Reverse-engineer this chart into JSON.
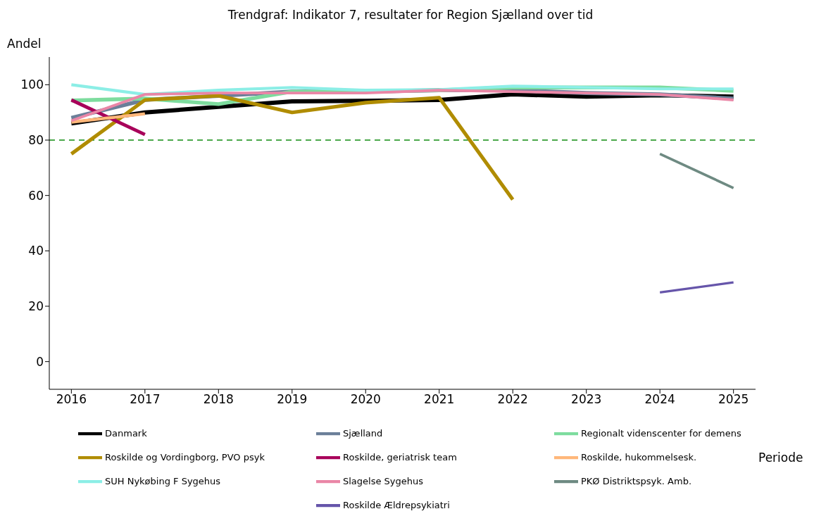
{
  "chart_data": {
    "type": "line",
    "title": "Trendgraf: Indikator 7, resultater for Region Sjælland over tid",
    "xlabel": "Periode",
    "ylabel": "Andel",
    "x": [
      2016,
      2017,
      2018,
      2019,
      2020,
      2021,
      2022,
      2023,
      2024,
      2025
    ],
    "xlim": [
      2015.7,
      2025.3
    ],
    "xticks": [
      2016,
      2017,
      2018,
      2019,
      2020,
      2021,
      2022,
      2023,
      2024,
      2025
    ],
    "ylim": [
      -10,
      110
    ],
    "yticks": [
      0,
      20,
      40,
      60,
      80,
      100
    ],
    "series": [
      {
        "name": "Danmark",
        "color": "#000000",
        "values": [
          86,
          90,
          92,
          94,
          94.2,
          94.5,
          96.5,
          95.7,
          96.2,
          95.7
        ]
      },
      {
        "name": "Sjælland",
        "color": "#6b7f99",
        "values": [
          88,
          94.5,
          96,
          97.5,
          97.5,
          98,
          98,
          97,
          96.5,
          95
        ]
      },
      {
        "name": "Regionalt videnscenter for demens",
        "color": "#7ddc9e",
        "values": [
          94.3,
          95,
          93,
          97.5,
          97.5,
          98,
          99,
          99,
          99,
          97.8
        ]
      },
      {
        "name": "Roskilde og Vordingborg, PVO psyk",
        "color": "#b08c00",
        "values": [
          75,
          94.5,
          96,
          90,
          93.5,
          95.3,
          58.5,
          null,
          null,
          null
        ]
      },
      {
        "name": "Roskilde, geriatrisk team",
        "color": "#a8005a",
        "values": [
          94.5,
          82,
          null,
          null,
          null,
          null,
          null,
          null,
          null,
          null
        ]
      },
      {
        "name": "Roskilde, hukommelsesk.",
        "color": "#ffb77a",
        "values": [
          86.5,
          89.5,
          null,
          null,
          null,
          null,
          null,
          null,
          null,
          null
        ]
      },
      {
        "name": "SUH Nykøbing F Sygehus",
        "color": "#8ceee6",
        "values": [
          100,
          96.5,
          98,
          99,
          98,
          98.2,
          99.5,
          99,
          98.5,
          98.5
        ]
      },
      {
        "name": "Slagelse Sygehus",
        "color": "#ea86a6",
        "values": [
          87,
          96.5,
          97,
          97,
          97,
          98,
          97.5,
          97,
          96.5,
          94.5
        ]
      },
      {
        "name": "PKØ Distriktspsyk. Amb.",
        "color": "#6e8a82",
        "values": [
          null,
          null,
          null,
          null,
          null,
          null,
          null,
          null,
          75,
          62.7
        ]
      },
      {
        "name": "Roskilde Ældrepsykiatri",
        "color": "#6655aa",
        "values": [
          null,
          null,
          null,
          null,
          null,
          null,
          null,
          null,
          25,
          28.6
        ]
      }
    ],
    "ref_lines": [
      {
        "axis": "y",
        "value": 80,
        "color": "#4aa84a",
        "line_style": "dashed"
      }
    ],
    "grid": false,
    "legend": "bottom",
    "line_style": "solid",
    "marker": "none"
  }
}
